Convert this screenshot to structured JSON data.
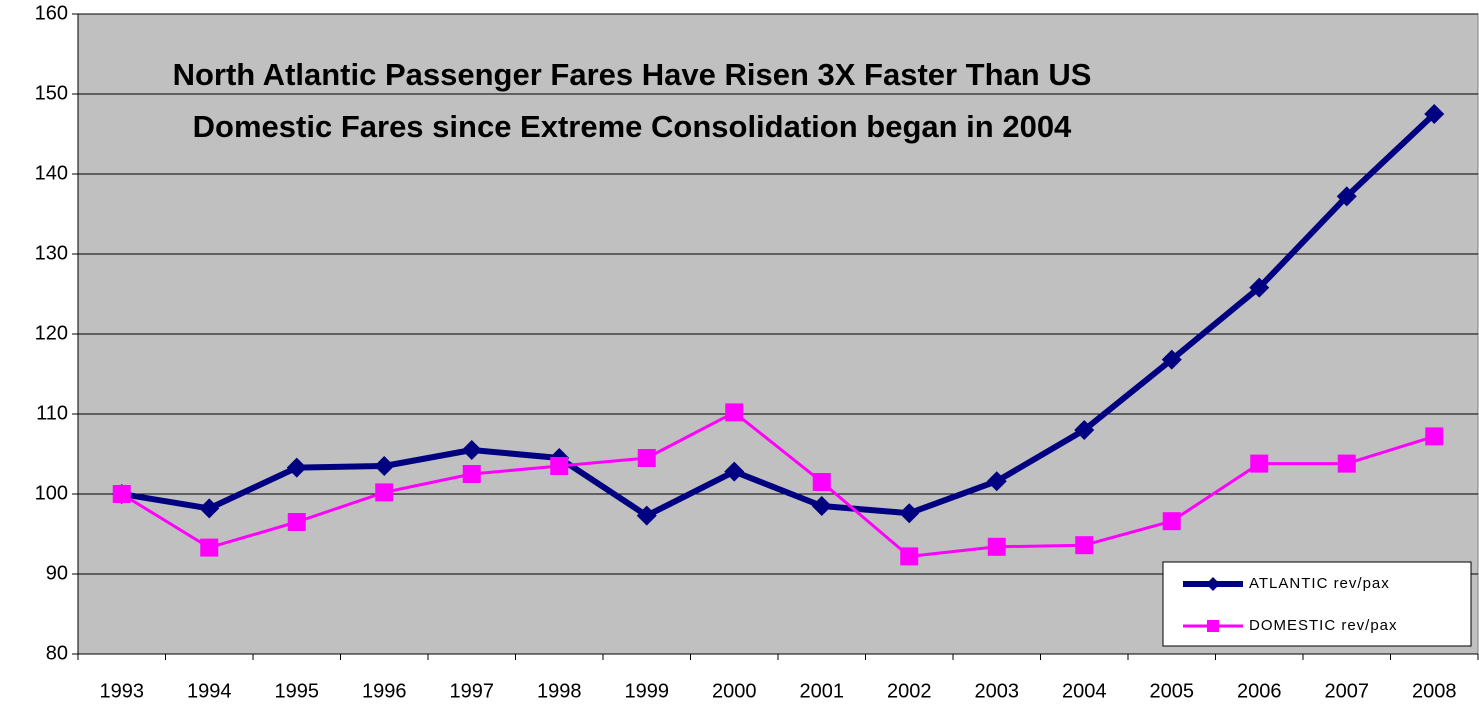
{
  "chart_data": {
    "type": "line",
    "title": [
      "North Atlantic Passenger Fares Have Risen 3X Faster Than US",
      "Domestic Fares since Extreme Consolidation began in 2004"
    ],
    "categories": [
      "1993",
      "1994",
      "1995",
      "1996",
      "1997",
      "1998",
      "1999",
      "2000",
      "2001",
      "2002",
      "2003",
      "2004",
      "2005",
      "2006",
      "2007",
      "2008"
    ],
    "series": [
      {
        "name": "ATLANTIC rev/pax",
        "color": "#000080",
        "marker": "diamond",
        "values": [
          100,
          98.2,
          103.3,
          103.5,
          105.5,
          104.5,
          97.3,
          102.8,
          98.5,
          97.6,
          101.6,
          108,
          116.8,
          125.8,
          137.2,
          147.5
        ]
      },
      {
        "name": "DOMESTIC rev/pax",
        "color": "#ff00ff",
        "marker": "square",
        "values": [
          100,
          93.3,
          96.5,
          100.2,
          102.5,
          103.5,
          104.5,
          110.2,
          101.5,
          92.2,
          93.4,
          93.6,
          96.6,
          103.8,
          103.8,
          107.2
        ]
      }
    ],
    "ylim": [
      80,
      160
    ],
    "yticks": [
      80,
      90,
      100,
      110,
      120,
      130,
      140,
      150,
      160
    ],
    "grid": true,
    "legend": "lower right"
  }
}
